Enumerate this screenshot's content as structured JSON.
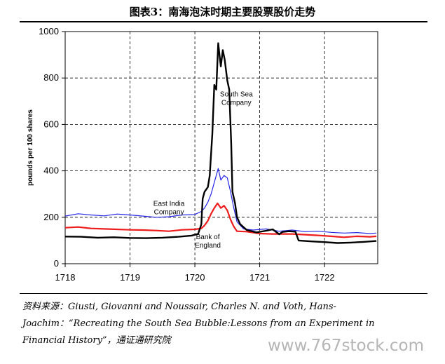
{
  "figure": {
    "title": "图表3：南海泡沫时期主要股票股价走势",
    "source_text": "资料来源：Giusti, Giovanni and Noussair, Charles N. and Voth, Hans-Joachim：“Recreating the South Sea Bubble:Lessons from an Experiment in Financial History”，通证通研究院",
    "watermark": "www.767stock.com"
  },
  "chart_data": {
    "type": "line",
    "title": "",
    "xlabel": "",
    "ylabel": "pounds per 100 shares",
    "xlim": [
      1718.0,
      1722.82
    ],
    "ylim": [
      0,
      1000
    ],
    "x_ticks": [
      1718,
      1719,
      1720,
      1721,
      1722
    ],
    "x_tick_labels": [
      "1718",
      "1719",
      "1720",
      "1721",
      "1722"
    ],
    "y_ticks": [
      0,
      200,
      400,
      600,
      800,
      1000
    ],
    "y_tick_labels": [
      "0",
      "200",
      "400",
      "600",
      "800",
      "1000"
    ],
    "grid": "dashed",
    "series": [
      {
        "name": "South Sea Company",
        "color": "#000000",
        "label_at": [
          1720.64,
          720
        ],
        "points": [
          [
            1718.0,
            117
          ],
          [
            1718.25,
            116
          ],
          [
            1718.5,
            112
          ],
          [
            1718.75,
            114
          ],
          [
            1719.0,
            111
          ],
          [
            1719.25,
            110
          ],
          [
            1719.5,
            112
          ],
          [
            1719.75,
            116
          ],
          [
            1719.95,
            121
          ],
          [
            1720.05,
            128
          ],
          [
            1720.1,
            170
          ],
          [
            1720.12,
            280
          ],
          [
            1720.15,
            310
          ],
          [
            1720.2,
            330
          ],
          [
            1720.23,
            380
          ],
          [
            1720.27,
            560
          ],
          [
            1720.3,
            770
          ],
          [
            1720.33,
            750
          ],
          [
            1720.36,
            950
          ],
          [
            1720.38,
            900
          ],
          [
            1720.4,
            850
          ],
          [
            1720.43,
            920
          ],
          [
            1720.46,
            880
          ],
          [
            1720.5,
            790
          ],
          [
            1720.53,
            750
          ],
          [
            1720.56,
            520
          ],
          [
            1720.58,
            310
          ],
          [
            1720.62,
            260
          ],
          [
            1720.65,
            200
          ],
          [
            1720.7,
            170
          ],
          [
            1720.8,
            145
          ],
          [
            1720.95,
            135
          ],
          [
            1721.1,
            142
          ],
          [
            1721.2,
            148
          ],
          [
            1721.3,
            127
          ],
          [
            1721.35,
            137
          ],
          [
            1721.45,
            140
          ],
          [
            1721.55,
            138
          ],
          [
            1721.6,
            100
          ],
          [
            1721.8,
            96
          ],
          [
            1722.0,
            93
          ],
          [
            1722.2,
            89
          ],
          [
            1722.4,
            91
          ],
          [
            1722.6,
            94
          ],
          [
            1722.8,
            98
          ]
        ]
      },
      {
        "name": "East India Company",
        "color": "#2626e8",
        "label_at": [
          1719.6,
          250
        ],
        "points": [
          [
            1718.0,
            205
          ],
          [
            1718.2,
            215
          ],
          [
            1718.4,
            210
          ],
          [
            1718.6,
            206
          ],
          [
            1718.8,
            214
          ],
          [
            1719.0,
            210
          ],
          [
            1719.2,
            205
          ],
          [
            1719.4,
            200
          ],
          [
            1719.6,
            202
          ],
          [
            1719.8,
            210
          ],
          [
            1720.0,
            212
          ],
          [
            1720.1,
            225
          ],
          [
            1720.15,
            240
          ],
          [
            1720.2,
            265
          ],
          [
            1720.25,
            300
          ],
          [
            1720.3,
            350
          ],
          [
            1720.36,
            410
          ],
          [
            1720.4,
            360
          ],
          [
            1720.45,
            380
          ],
          [
            1720.5,
            370
          ],
          [
            1720.55,
            310
          ],
          [
            1720.6,
            240
          ],
          [
            1720.65,
            180
          ],
          [
            1720.75,
            150
          ],
          [
            1720.9,
            145
          ],
          [
            1721.1,
            150
          ],
          [
            1721.3,
            140
          ],
          [
            1721.5,
            145
          ],
          [
            1721.7,
            138
          ],
          [
            1721.9,
            140
          ],
          [
            1722.1,
            135
          ],
          [
            1722.3,
            132
          ],
          [
            1722.5,
            134
          ],
          [
            1722.7,
            130
          ],
          [
            1722.8,
            132
          ]
        ]
      },
      {
        "name": "Bank of England",
        "color": "#ee1c1c",
        "label_at": [
          1720.2,
          105
        ],
        "points": [
          [
            1718.0,
            155
          ],
          [
            1718.2,
            158
          ],
          [
            1718.4,
            152
          ],
          [
            1718.6,
            150
          ],
          [
            1718.8,
            148
          ],
          [
            1719.0,
            146
          ],
          [
            1719.2,
            145
          ],
          [
            1719.4,
            143
          ],
          [
            1719.6,
            140
          ],
          [
            1719.8,
            146
          ],
          [
            1720.0,
            148
          ],
          [
            1720.1,
            152
          ],
          [
            1720.15,
            165
          ],
          [
            1720.2,
            185
          ],
          [
            1720.25,
            215
          ],
          [
            1720.3,
            240
          ],
          [
            1720.35,
            260
          ],
          [
            1720.4,
            240
          ],
          [
            1720.45,
            250
          ],
          [
            1720.5,
            230
          ],
          [
            1720.55,
            190
          ],
          [
            1720.6,
            160
          ],
          [
            1720.65,
            140
          ],
          [
            1720.8,
            138
          ],
          [
            1721.0,
            130
          ],
          [
            1721.2,
            128
          ],
          [
            1721.5,
            128
          ],
          [
            1721.7,
            125
          ],
          [
            1721.9,
            122
          ],
          [
            1722.1,
            118
          ],
          [
            1722.3,
            114
          ],
          [
            1722.5,
            118
          ],
          [
            1722.7,
            116
          ],
          [
            1722.8,
            118
          ]
        ]
      }
    ],
    "annotations": [
      {
        "series": "South Sea Company",
        "lines": [
          "South Sea",
          "Company"
        ]
      },
      {
        "series": "East India Company",
        "lines": [
          "East India",
          "Company"
        ]
      },
      {
        "series": "Bank of England",
        "lines": [
          "Bank of",
          "England"
        ]
      }
    ]
  }
}
